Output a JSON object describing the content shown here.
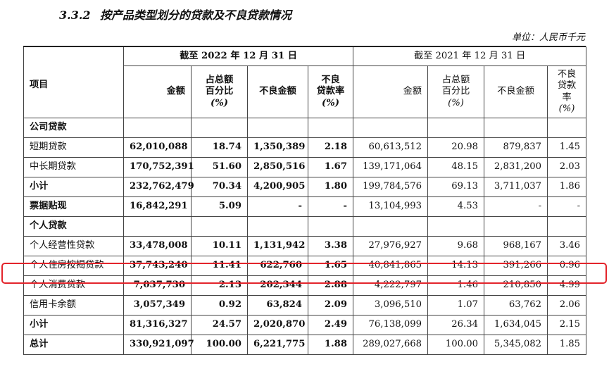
{
  "heading": {
    "number": "3.3.2",
    "title": "按产品类型划分的贷款及不良贷款情况"
  },
  "unit": "单位：人民币千元",
  "header": {
    "item": "项目",
    "period_2022": "截至 2022 年 12 月 31 日",
    "period_2021": "截至 2021 年 12 月 31 日",
    "amount": "金额",
    "share_l1": "占总额",
    "share_l2": "百分比",
    "share_unit": "(%)",
    "npl_amount": "不良金额",
    "npl_ratio_l1": "不良",
    "npl_ratio_l2": "贷款率",
    "npl_ratio_unit": "(%)"
  },
  "rows": [
    {
      "label": "公司贷款",
      "bold": true,
      "section": true
    },
    {
      "label": "短期贷款",
      "v": [
        "62,010,088",
        "18.74",
        "1,350,389",
        "2.18",
        "60,613,512",
        "20.98",
        "879,837",
        "1.45"
      ]
    },
    {
      "label": "中长期贷款",
      "v": [
        "170,752,391",
        "51.60",
        "2,850,516",
        "1.67",
        "139,171,064",
        "48.15",
        "2,831,200",
        "2.03"
      ]
    },
    {
      "label": "小计",
      "bold": true,
      "v": [
        "232,762,479",
        "70.34",
        "4,200,905",
        "1.80",
        "199,784,576",
        "69.13",
        "3,711,037",
        "1.86"
      ]
    },
    {
      "label": "票据贴现",
      "bold": true,
      "v": [
        "16,842,291",
        "5.09",
        "-",
        "-",
        "13,104,993",
        "4.53",
        "-",
        "-"
      ]
    },
    {
      "label": "个人贷款",
      "bold": true,
      "section": true
    },
    {
      "label": "个人经营性贷款",
      "v": [
        "33,478,008",
        "10.11",
        "1,131,942",
        "3.38",
        "27,976,927",
        "9.68",
        "968,167",
        "3.46"
      ]
    },
    {
      "label": "个人住房按揭贷款",
      "highlight": true,
      "v": [
        "37,743,240",
        "11.41",
        "622,760",
        "1.65",
        "40,841,865",
        "14.13",
        "391,266",
        "0.96"
      ]
    },
    {
      "label": "个人消费贷款",
      "v": [
        "7,037,730",
        "2.13",
        "202,344",
        "2.88",
        "4,222,797",
        "1.46",
        "210,850",
        "4.99"
      ]
    },
    {
      "label": "信用卡余额",
      "v": [
        "3,057,349",
        "0.92",
        "63,824",
        "2.09",
        "3,096,510",
        "1.07",
        "63,762",
        "2.06"
      ]
    },
    {
      "label": "小计",
      "bold": true,
      "v": [
        "81,316,327",
        "24.57",
        "2,020,870",
        "2.49",
        "76,138,099",
        "26.34",
        "1,634,045",
        "2.15"
      ]
    },
    {
      "label": "总计",
      "bold": true,
      "v": [
        "330,921,097",
        "100.00",
        "6,221,775",
        "1.88",
        "289,027,668",
        "100.00",
        "5,345,082",
        "1.85"
      ]
    }
  ],
  "highlight_color": "#e3242b"
}
